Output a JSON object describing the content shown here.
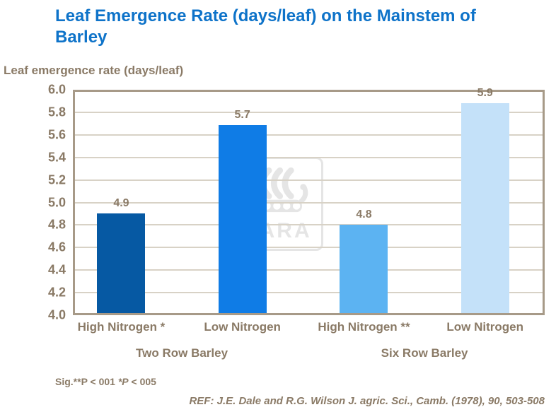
{
  "title_lines": [
    "Leaf Emergence Rate (days/leaf) on the Mainstem of",
    "Barley"
  ],
  "watermark": {
    "text": "YARA"
  },
  "chart_data": {
    "type": "bar",
    "title": "Leaf Emergence Rate (days/leaf) on the Mainstem of Barley",
    "ylabel": "Leaf emergence rate (days/leaf)",
    "xlabel": "",
    "categories": [
      "High Nitrogen *",
      "Low Nitrogen",
      "High Nitrogen **",
      "Low Nitrogen"
    ],
    "values": [
      4.9,
      5.7,
      4.8,
      5.9
    ],
    "data_labels": [
      "4.9",
      "5.7",
      "4.8",
      "5.9"
    ],
    "bar_colors": [
      "#0659a3",
      "#0f7ce6",
      "#5cb3f2",
      "#c4e1f9"
    ],
    "groups": [
      "Two Row Barley",
      "Six Row Barley"
    ],
    "ylim": [
      4.0,
      6.0
    ],
    "ytick_step": 0.2,
    "ytick_labels": [
      "6.0",
      "5.8",
      "5.6",
      "5.4",
      "5.2",
      "5.0",
      "4.8",
      "4.6",
      "4.4",
      "4.2",
      "4.0"
    ],
    "grid": true,
    "legend_position": "none"
  },
  "footnotes": {
    "sig_prefix": "Sig.**P < 001 ",
    "sig_italic": "*P",
    "sig_suffix": " < 005",
    "ref": "REF: J.E. Dale and R.G. Wilson J. agric. Sci., Camb. (1978), 90, 503-508"
  },
  "colors": {
    "title": "#0e73c9",
    "text": "#8a7a66",
    "grid": "#d8d2c6",
    "frame": "#a79a88",
    "watermark": "#e5e5e5"
  }
}
